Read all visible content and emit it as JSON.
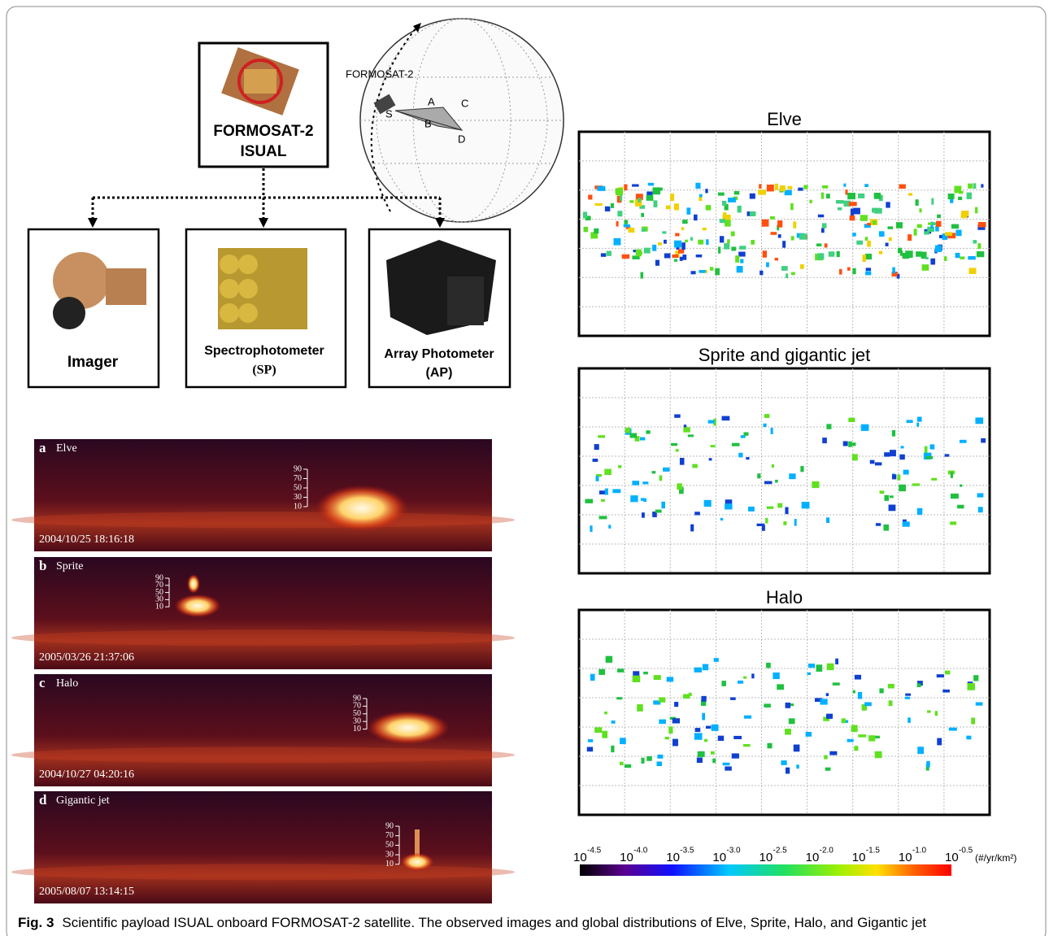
{
  "figure": {
    "diagram": {
      "satellite_box": {
        "line1": "FORMOSAT-2",
        "line2": "ISUAL"
      },
      "globe": {
        "satellite_label": "FORMOSAT-2",
        "points": [
          "A",
          "B",
          "C",
          "D",
          "S"
        ]
      },
      "instruments": [
        {
          "name": "Imager"
        },
        {
          "name": "Spectrophotometer",
          "abbreviation": "(SP)"
        },
        {
          "name": "Array Photometer",
          "abbreviation": "(AP)"
        }
      ]
    },
    "images": [
      {
        "letter": "a",
        "event": "Elve",
        "timestamp": "2004/10/25 18:16:18",
        "altitude_ticks": [
          90,
          70,
          50,
          30,
          10
        ]
      },
      {
        "letter": "b",
        "event": "Sprite",
        "timestamp": "2005/03/26 21:37:06",
        "altitude_ticks": [
          90,
          70,
          50,
          30,
          10
        ]
      },
      {
        "letter": "c",
        "event": "Halo",
        "timestamp": "2004/10/27 04:20:16",
        "altitude_ticks": [
          90,
          70,
          50,
          30,
          10
        ]
      },
      {
        "letter": "d",
        "event": "Gigantic jet",
        "timestamp": "2005/08/07 13:14:15",
        "altitude_ticks": [
          90,
          70,
          50,
          30,
          10
        ]
      }
    ],
    "maps": [
      {
        "title": "Elve"
      },
      {
        "title": "Sprite and gigantic jet"
      },
      {
        "title": "Halo"
      }
    ],
    "colorbar": {
      "base": "10",
      "exponents": [
        "-4.5",
        "-4.0",
        "-3.5",
        "-3.0",
        "-2.5",
        "-2.0",
        "-1.5",
        "-1.0",
        "-0.5"
      ],
      "unit": "(#/yr/km²)"
    },
    "caption": {
      "label": "Fig. 3",
      "text": "Scientific payload ISUAL onboard FORMOSAT-2 satellite. The observed images and global distributions of Elve, Sprite, Halo, and Gigantic jet"
    }
  }
}
